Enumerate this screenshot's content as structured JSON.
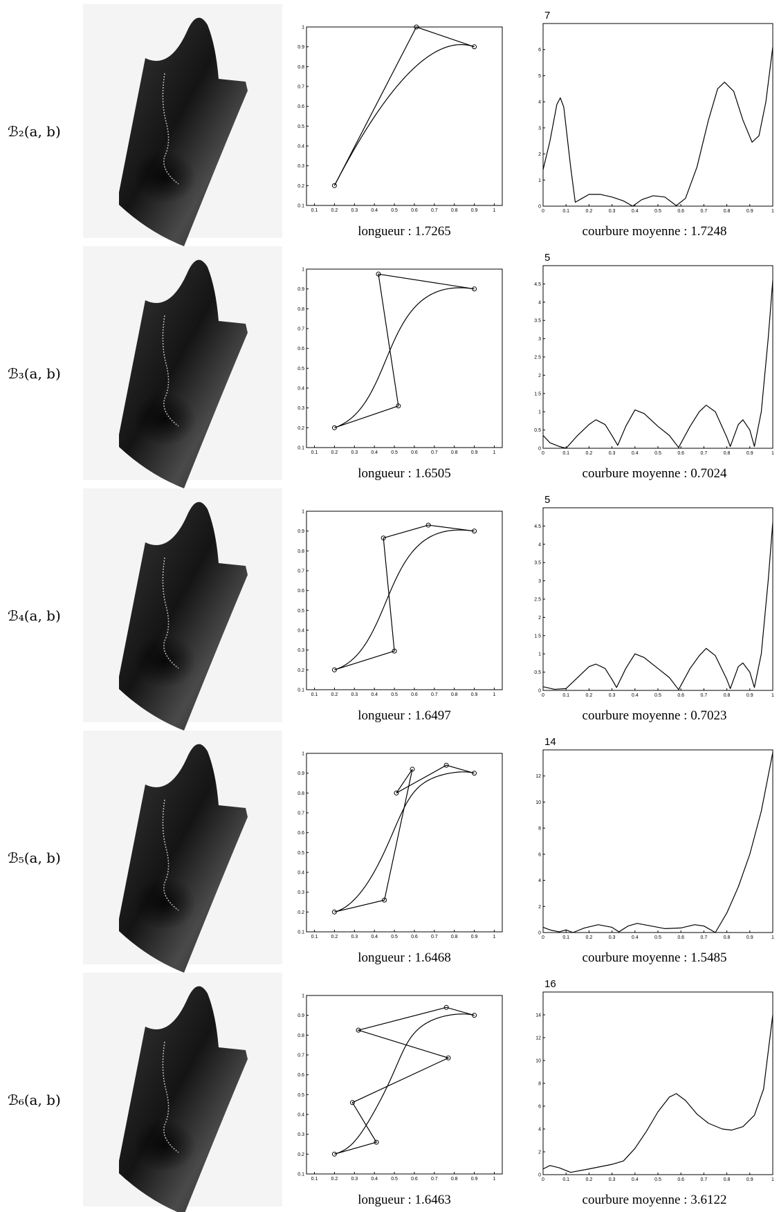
{
  "polygon_axes": {
    "xlim": [
      0.06,
      1.04
    ],
    "ylim": [
      0.1,
      1
    ],
    "xticks": [
      0.1,
      0.2,
      0.3,
      0.4,
      0.5,
      0.6,
      0.7,
      0.8,
      0.9,
      1
    ],
    "yticks": [
      0.1,
      0.2,
      0.3,
      0.4,
      0.5,
      0.6,
      0.7,
      0.8,
      0.9,
      1
    ]
  },
  "curvature_axes": {
    "xlim": [
      0,
      1
    ],
    "xticks": [
      0,
      0.1,
      0.2,
      0.3,
      0.4,
      0.5,
      0.6,
      0.7,
      0.8,
      0.9,
      1
    ]
  },
  "rows": [
    {
      "label": "ℬ₂(a, b)",
      "length_caption": "longueur : 1.7265",
      "curvature_caption": "courbure moyenne : 1.7248",
      "control_x": [
        0.2,
        0.61,
        0.9
      ],
      "control_y": [
        0.2,
        1.0,
        0.9
      ],
      "ylim": [
        0,
        7
      ],
      "yticks": [
        0,
        1,
        2,
        3,
        4,
        5,
        6,
        7
      ],
      "curvature_x": [
        0,
        0.03,
        0.06,
        0.075,
        0.09,
        0.12,
        0.14,
        0.17,
        0.2,
        0.25,
        0.3,
        0.35,
        0.39,
        0.43,
        0.48,
        0.53,
        0.58,
        0.62,
        0.67,
        0.72,
        0.76,
        0.79,
        0.83,
        0.87,
        0.91,
        0.94,
        0.97,
        1.0
      ],
      "curvature_y": [
        1.4,
        2.5,
        3.9,
        4.15,
        3.8,
        1.5,
        0.15,
        0.3,
        0.45,
        0.45,
        0.35,
        0.2,
        0.0,
        0.25,
        0.4,
        0.35,
        0.02,
        0.3,
        1.5,
        3.3,
        4.5,
        4.75,
        4.4,
        3.3,
        2.45,
        2.7,
        4.0,
        6.1
      ]
    },
    {
      "label": "ℬ₃(a, b)",
      "length_caption": "longueur : 1.6505",
      "curvature_caption": "courbure moyenne : 0.7024",
      "control_x": [
        0.2,
        0.52,
        0.42,
        0.9
      ],
      "control_y": [
        0.2,
        0.31,
        0.975,
        0.9
      ],
      "ylim": [
        0,
        5
      ],
      "yticks": [
        0,
        0.5,
        1,
        1.5,
        2,
        2.5,
        3,
        3.5,
        4,
        4.5,
        5
      ],
      "curvature_x": [
        0,
        0.03,
        0.07,
        0.1,
        0.15,
        0.2,
        0.23,
        0.27,
        0.3,
        0.325,
        0.36,
        0.4,
        0.44,
        0.5,
        0.55,
        0.59,
        0.64,
        0.68,
        0.71,
        0.75,
        0.8,
        0.815,
        0.85,
        0.87,
        0.9,
        0.92,
        0.95,
        0.98,
        1.0
      ],
      "curvature_y": [
        0.35,
        0.15,
        0.05,
        0,
        0.35,
        0.65,
        0.78,
        0.65,
        0.35,
        0.08,
        0.6,
        1.05,
        0.95,
        0.6,
        0.35,
        0.02,
        0.6,
        1.0,
        1.18,
        1.0,
        0.3,
        0.05,
        0.65,
        0.78,
        0.5,
        0.05,
        1.0,
        3.0,
        4.6
      ]
    },
    {
      "label": "ℬ₄(a, b)",
      "length_caption": "longueur : 1.6497",
      "curvature_caption": "courbure moyenne : 0.7023",
      "control_x": [
        0.2,
        0.5,
        0.445,
        0.67,
        0.9
      ],
      "control_y": [
        0.2,
        0.295,
        0.865,
        0.93,
        0.9
      ],
      "ylim": [
        0,
        5
      ],
      "yticks": [
        0,
        0.5,
        1,
        1.5,
        2,
        2.5,
        3,
        3.5,
        4,
        4.5,
        5
      ],
      "curvature_x": [
        0,
        0.05,
        0.1,
        0.15,
        0.2,
        0.23,
        0.27,
        0.3,
        0.32,
        0.36,
        0.4,
        0.44,
        0.5,
        0.55,
        0.59,
        0.64,
        0.68,
        0.71,
        0.75,
        0.8,
        0.815,
        0.85,
        0.87,
        0.9,
        0.92,
        0.95,
        0.98,
        1.0
      ],
      "curvature_y": [
        0.1,
        0.03,
        0.05,
        0.35,
        0.65,
        0.72,
        0.6,
        0.3,
        0.08,
        0.6,
        1.0,
        0.9,
        0.6,
        0.35,
        0.02,
        0.6,
        0.95,
        1.15,
        0.95,
        0.3,
        0.05,
        0.65,
        0.75,
        0.5,
        0.08,
        1.0,
        3.0,
        4.6
      ]
    },
    {
      "label": "ℬ₅(a, b)",
      "length_caption": "longueur : 1.6468",
      "curvature_caption": "courbure moyenne : 1.5485",
      "control_x": [
        0.2,
        0.45,
        0.59,
        0.51,
        0.76,
        0.9
      ],
      "control_y": [
        0.2,
        0.26,
        0.92,
        0.8,
        0.94,
        0.9
      ],
      "ylim": [
        0,
        14
      ],
      "yticks": [
        0,
        2,
        4,
        6,
        8,
        10,
        12,
        14
      ],
      "curvature_x": [
        0,
        0.03,
        0.07,
        0.1,
        0.13,
        0.18,
        0.24,
        0.3,
        0.33,
        0.37,
        0.41,
        0.47,
        0.53,
        0.6,
        0.66,
        0.7,
        0.75,
        0.8,
        0.85,
        0.9,
        0.95,
        1.0
      ],
      "curvature_y": [
        0.4,
        0.2,
        0.05,
        0.2,
        0,
        0.35,
        0.6,
        0.4,
        0.05,
        0.5,
        0.7,
        0.5,
        0.3,
        0.35,
        0.6,
        0.5,
        0,
        1.5,
        3.5,
        6.0,
        9.3,
        13.8
      ]
    },
    {
      "label": "ℬ₆(a, b)",
      "length_caption": "longueur : 1.6463",
      "curvature_caption": "courbure moyenne : 3.6122",
      "control_x": [
        0.2,
        0.41,
        0.29,
        0.77,
        0.32,
        0.76,
        0.9
      ],
      "control_y": [
        0.2,
        0.26,
        0.46,
        0.685,
        0.825,
        0.94,
        0.9
      ],
      "ylim": [
        0,
        16
      ],
      "yticks": [
        0,
        2,
        4,
        6,
        8,
        10,
        12,
        14,
        16
      ],
      "curvature_x": [
        0,
        0.03,
        0.07,
        0.12,
        0.2,
        0.3,
        0.35,
        0.4,
        0.45,
        0.5,
        0.55,
        0.58,
        0.62,
        0.67,
        0.72,
        0.78,
        0.82,
        0.87,
        0.92,
        0.96,
        1.0
      ],
      "curvature_y": [
        0.5,
        0.8,
        0.6,
        0.2,
        0.5,
        0.9,
        1.2,
        2.3,
        3.8,
        5.5,
        6.8,
        7.1,
        6.5,
        5.3,
        4.5,
        4.0,
        3.9,
        4.2,
        5.2,
        7.5,
        14.0
      ]
    }
  ]
}
